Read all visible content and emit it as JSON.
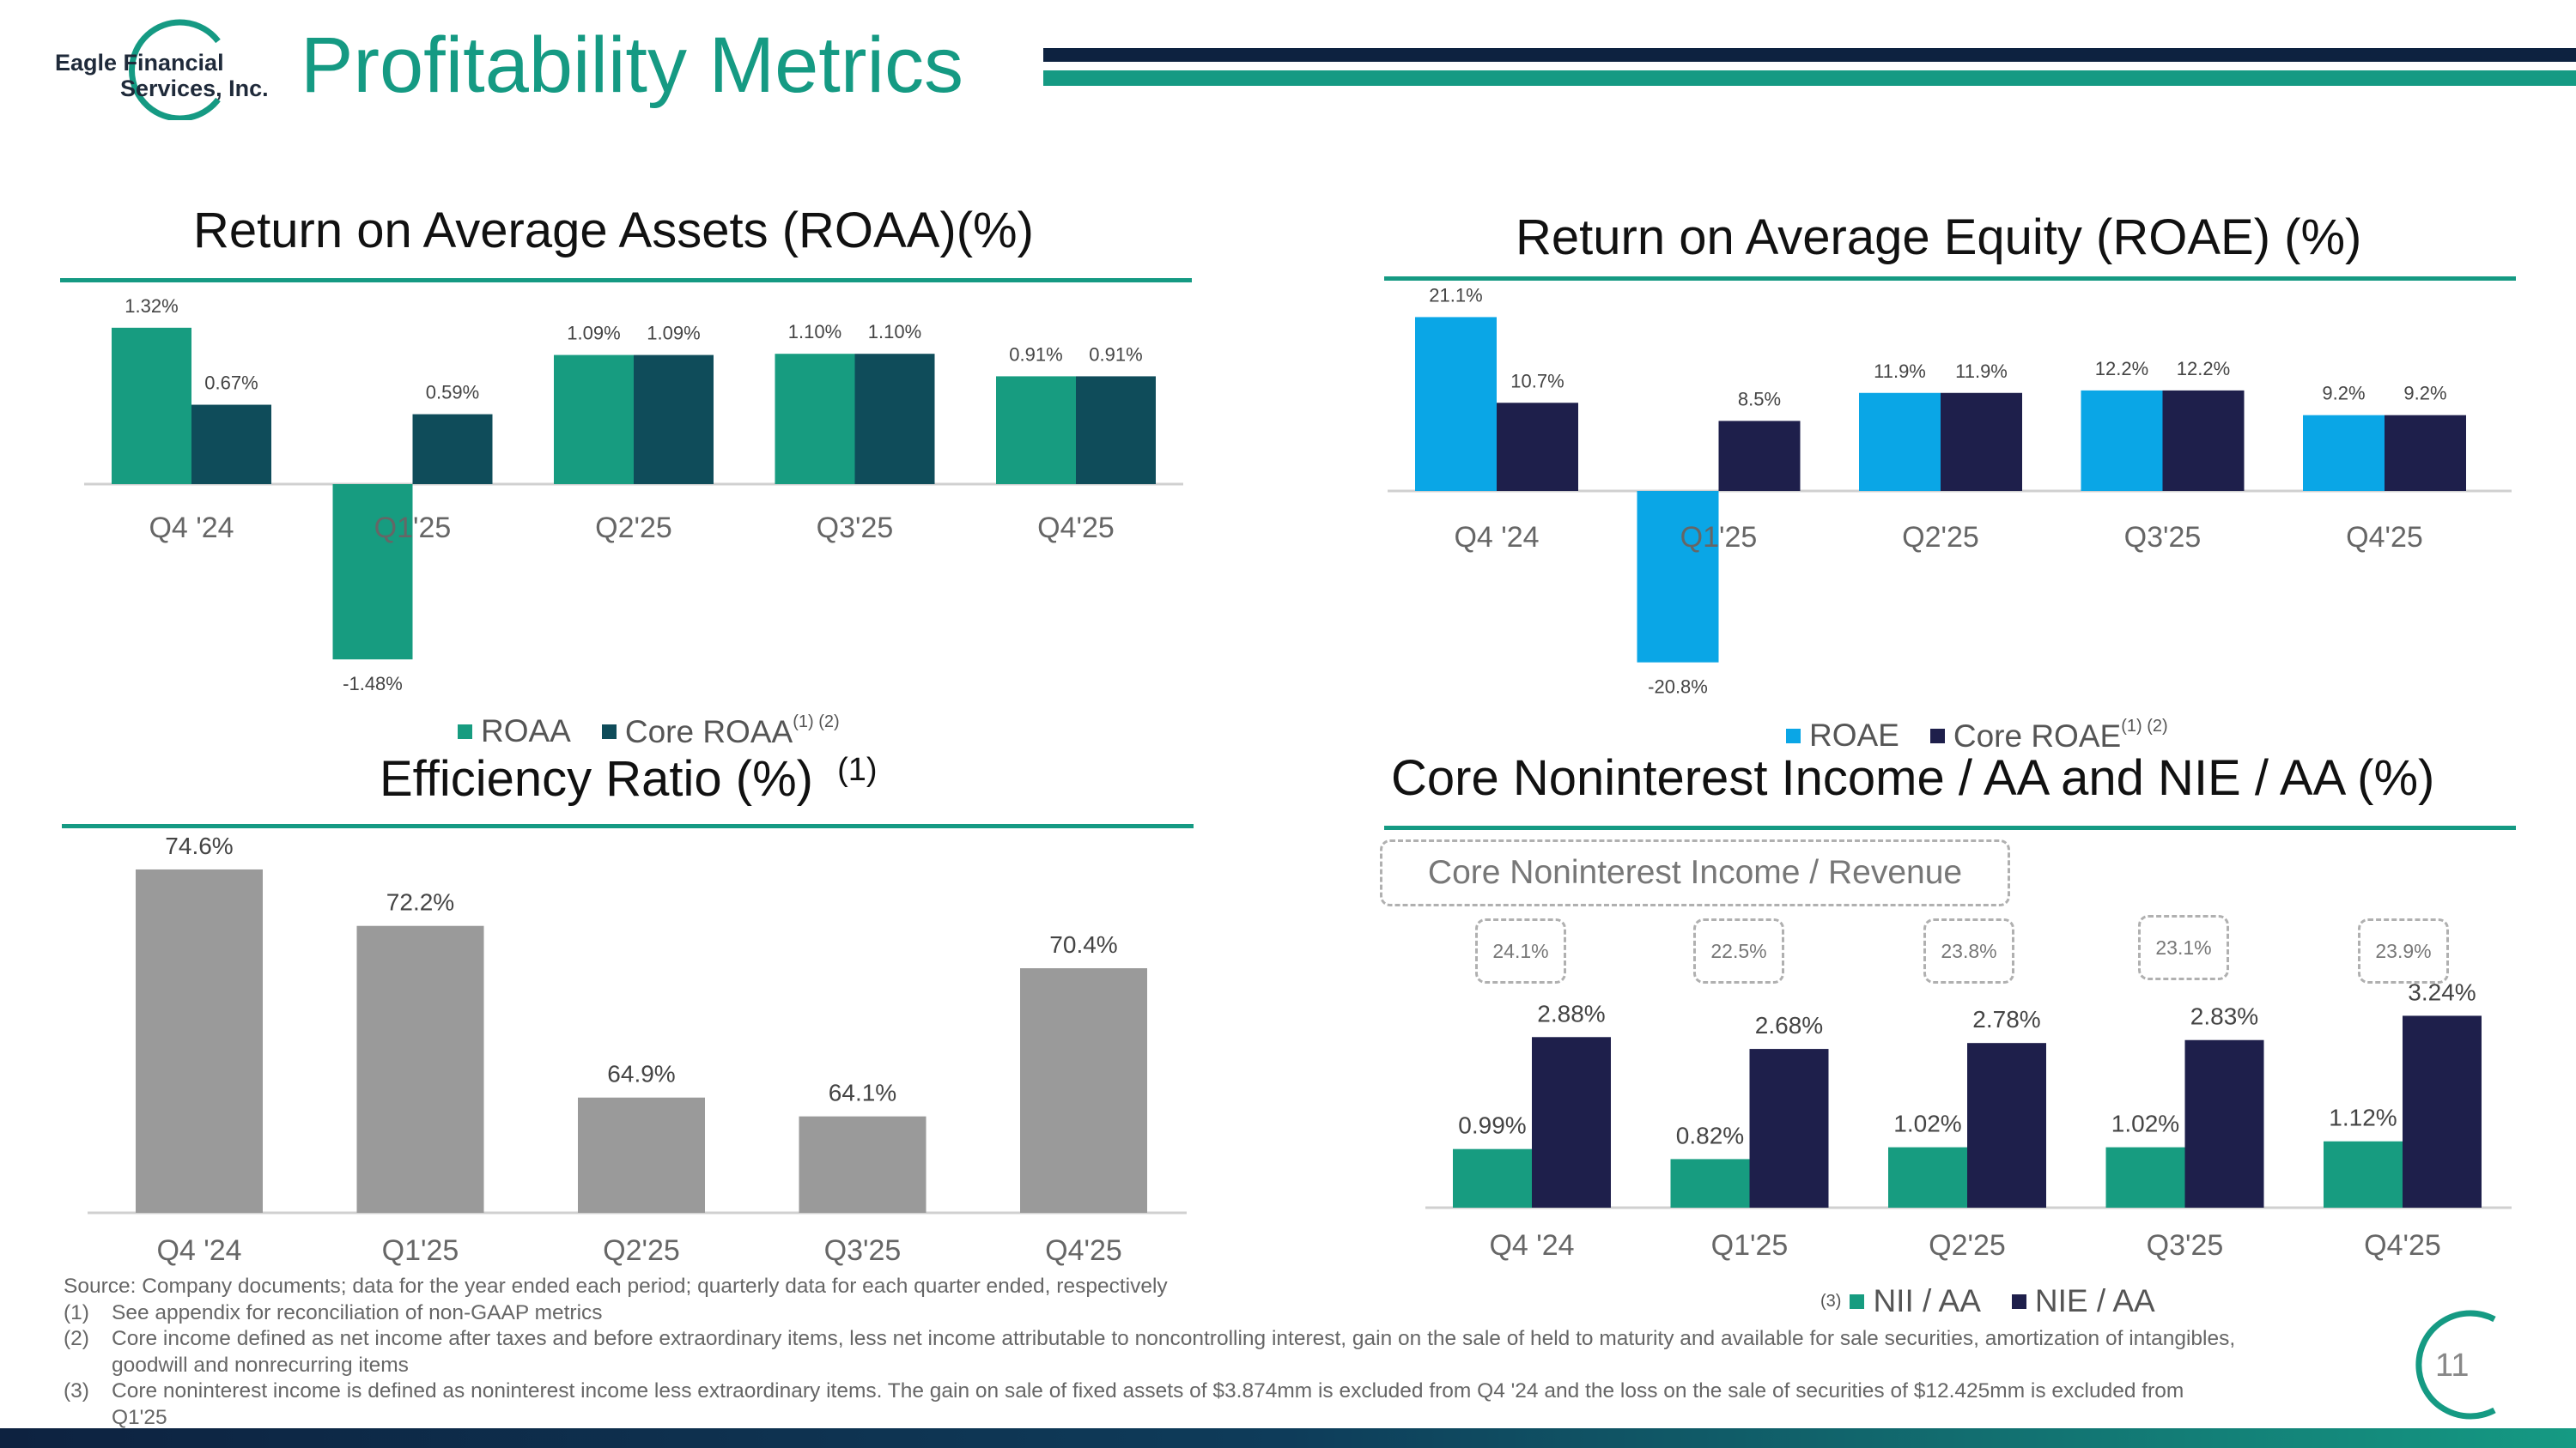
{
  "company": {
    "name_line1": "Eagle Financial",
    "name_line2": "Services, Inc."
  },
  "slide_title": "Profitability Metrics",
  "page_number": "11",
  "colors": {
    "teal": "#179c80",
    "dark_teal": "#0f4c5a",
    "sky": "#0aa6e6",
    "navy": "#1e1f4b",
    "gray": "#9a9a9a",
    "title_green": "#159a83",
    "header_navy": "#0d2240"
  },
  "chart_data": [
    {
      "id": "roaa",
      "type": "bar",
      "title": "Return on Average Assets (ROAA)(%)",
      "categories": [
        "Q4 '24",
        "Q1'25",
        "Q2'25",
        "Q3'25",
        "Q4'25"
      ],
      "series": [
        {
          "name": "ROAA",
          "values": [
            1.32,
            -1.48,
            1.09,
            1.1,
            0.91
          ],
          "labels": [
            "1.32%",
            "-1.48%",
            "1.09%",
            "1.10%",
            "0.91%"
          ]
        },
        {
          "name": "Core ROAA",
          "values": [
            0.67,
            0.59,
            1.09,
            1.1,
            0.91
          ],
          "labels": [
            "0.67%",
            "0.59%",
            "1.09%",
            "1.10%",
            "0.91%"
          ]
        }
      ],
      "legend": [
        "ROAA",
        "Core ROAA"
      ],
      "legend_footnote": "(1) (2)",
      "ylim": [
        -1.6,
        1.4
      ]
    },
    {
      "id": "roae",
      "type": "bar",
      "title": "Return on Average Equity (ROAE) (%)",
      "categories": [
        "Q4 '24",
        "Q1'25",
        "Q2'25",
        "Q3'25",
        "Q4'25"
      ],
      "series": [
        {
          "name": "ROAE",
          "values": [
            21.1,
            -20.8,
            11.9,
            12.2,
            9.2
          ],
          "labels": [
            "21.1%",
            "-20.8%",
            "11.9%",
            "12.2%",
            "9.2%"
          ]
        },
        {
          "name": "Core ROAE",
          "values": [
            10.7,
            8.5,
            11.9,
            12.2,
            9.2
          ],
          "labels": [
            "10.7%",
            "8.5%",
            "11.9%",
            "12.2%",
            "9.2%"
          ]
        }
      ],
      "legend": [
        "ROAE",
        "Core ROAE"
      ],
      "legend_footnote": "(1) (2)",
      "ylim": [
        -22,
        23
      ]
    },
    {
      "id": "efficiency",
      "type": "bar",
      "title": "Efficiency Ratio (%)",
      "title_footnote": "(1)",
      "categories": [
        "Q4 '24",
        "Q1'25",
        "Q2'25",
        "Q3'25",
        "Q4'25"
      ],
      "series": [
        {
          "name": "Efficiency Ratio",
          "values": [
            74.6,
            72.2,
            64.9,
            64.1,
            70.4
          ],
          "labels": [
            "74.6%",
            "72.2%",
            "64.9%",
            "64.1%",
            "70.4%"
          ]
        }
      ],
      "ylim": [
        60.0,
        75.5
      ]
    },
    {
      "id": "nii_nie",
      "type": "bar",
      "title": "Core Noninterest Income / AA and NIE / AA (%)",
      "categories": [
        "Q4 '24",
        "Q1'25",
        "Q2'25",
        "Q3'25",
        "Q4'25"
      ],
      "series": [
        {
          "name": "NII / AA",
          "values": [
            0.99,
            0.82,
            1.02,
            1.02,
            1.12
          ],
          "labels": [
            "0.99%",
            "0.82%",
            "1.02%",
            "1.02%",
            "1.12%"
          ]
        },
        {
          "name": "NIE / AA",
          "values": [
            2.88,
            2.68,
            2.78,
            2.83,
            3.24
          ],
          "labels": [
            "2.88%",
            "2.68%",
            "2.78%",
            "2.83%",
            "3.24%"
          ]
        }
      ],
      "callout_title": "Core Noninterest Income / Revenue",
      "callouts": [
        "24.1%",
        "22.5%",
        "23.8%",
        "23.1%",
        "23.9%"
      ],
      "legend": [
        "NII / AA",
        "NIE / AA"
      ],
      "legend_footnote": "(3)",
      "ylim": [
        0,
        3.3
      ]
    }
  ],
  "footnotes": {
    "source": "Source: Company documents; data for the year ended each period; quarterly data for each quarter ended, respectively",
    "notes": [
      {
        "num": "(1)",
        "text": "See appendix for reconciliation of non-GAAP metrics"
      },
      {
        "num": "(2)",
        "text": "Core income defined as net income after taxes and before extraordinary items, less net income attributable to noncontrolling interest, gain on the sale of held to maturity and available for sale securities, amortization of intangibles, goodwill and nonrecurring items"
      },
      {
        "num": "(3)",
        "text": "Core noninterest income is defined as noninterest income less extraordinary items. The gain on sale of fixed assets of $3.874mm is excluded from Q4 '24 and the loss on the sale of securities of $12.425mm is excluded from Q1'25"
      }
    ]
  }
}
